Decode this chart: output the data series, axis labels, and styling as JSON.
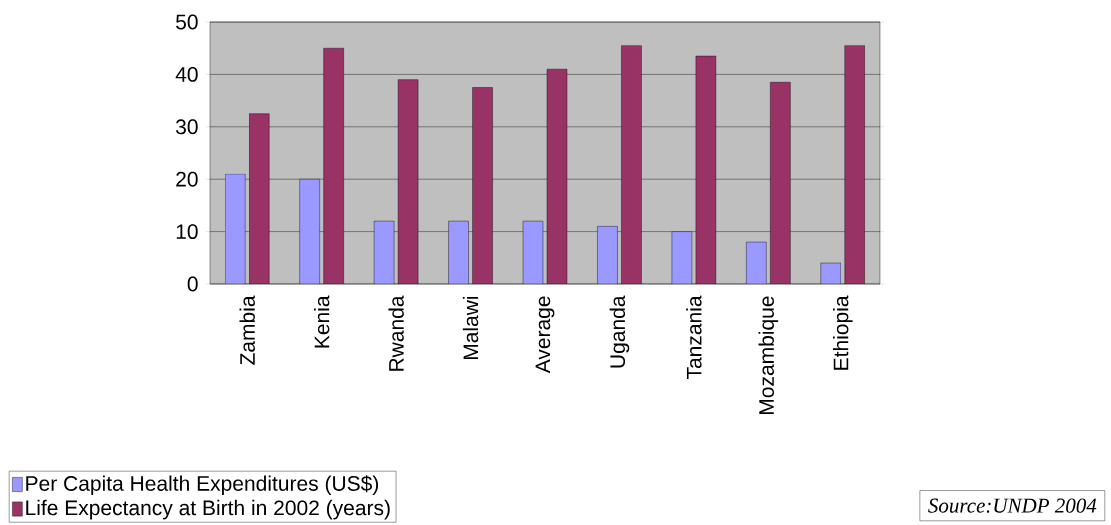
{
  "chart_data": {
    "type": "bar",
    "categories": [
      "Zambia",
      "Kenia",
      "Rwanda",
      "Malawi",
      "Average",
      "Uganda",
      "Tanzania",
      "Mozambique",
      "Ethiopia"
    ],
    "series": [
      {
        "name": "Per Capita Health Expenditures (US$)",
        "color": "#9999ff",
        "values": [
          21,
          20,
          12,
          12,
          12,
          11,
          10,
          8,
          4
        ]
      },
      {
        "name": "Life Expectancy at Birth in 2002 (years)",
        "color": "#993366",
        "values": [
          32.5,
          45,
          39,
          37.5,
          41,
          45.5,
          43.5,
          38.5,
          45.5
        ]
      }
    ],
    "ylim": [
      0,
      50
    ],
    "yticks": [
      0,
      10,
      20,
      30,
      40,
      50
    ],
    "grid": "y",
    "legend": "bottom left",
    "annotations": [
      "Source:UNDP 2004"
    ]
  }
}
